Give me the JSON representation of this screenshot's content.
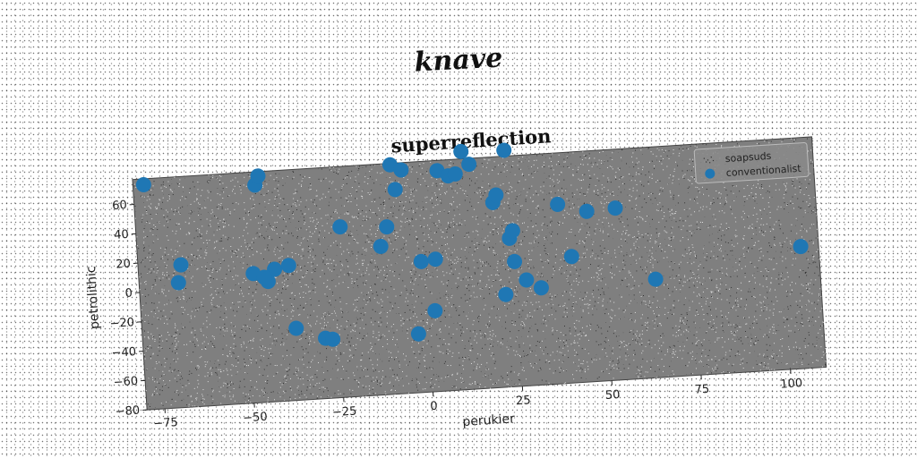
{
  "header": {
    "title": "knave"
  },
  "chart_data": {
    "type": "scatter",
    "title": "superreflection",
    "xlabel": "perukier",
    "ylabel": "petrolithic",
    "xlim": [
      -80,
      110
    ],
    "ylim": [
      -80,
      77
    ],
    "xticks": [
      -75,
      -50,
      -25,
      0,
      25,
      50,
      75,
      100
    ],
    "yticks": [
      -80,
      -60,
      -40,
      -20,
      0,
      20,
      40,
      60
    ],
    "grid": false,
    "legend_position": "top-right",
    "colors": {
      "plot_bg": "#7f7f7f",
      "series": "#1f77b4"
    },
    "series": [
      {
        "name": "soapsuds",
        "style": "noise",
        "x": [],
        "y": []
      },
      {
        "name": "conventionalist",
        "style": "markers",
        "x": [
          -77,
          -68,
          -69,
          -48,
          -46,
          -45,
          -42,
          -44,
          -38,
          -45,
          -37,
          -29,
          -27,
          -23,
          -12,
          -10,
          -8,
          -7,
          -5,
          -3,
          -1,
          2,
          3,
          5,
          8,
          10,
          12,
          14,
          20,
          21,
          22,
          24,
          24,
          25,
          25,
          28,
          32,
          38,
          41,
          46,
          54,
          64,
          105
        ],
        "y": [
          73,
          17,
          5,
          8,
          68,
          74,
          10,
          2,
          12,
          5,
          -31,
          -39,
          -40,
          36,
          21,
          34,
          76,
          59,
          72,
          -40,
          9,
          -25,
          10,
          70,
          66,
          67,
          82,
          73,
          46,
          51,
          -17,
          21,
          81,
          26,
          5,
          -8,
          -14,
          42,
          6,
          36,
          37,
          -13,
          3
        ]
      }
    ]
  }
}
